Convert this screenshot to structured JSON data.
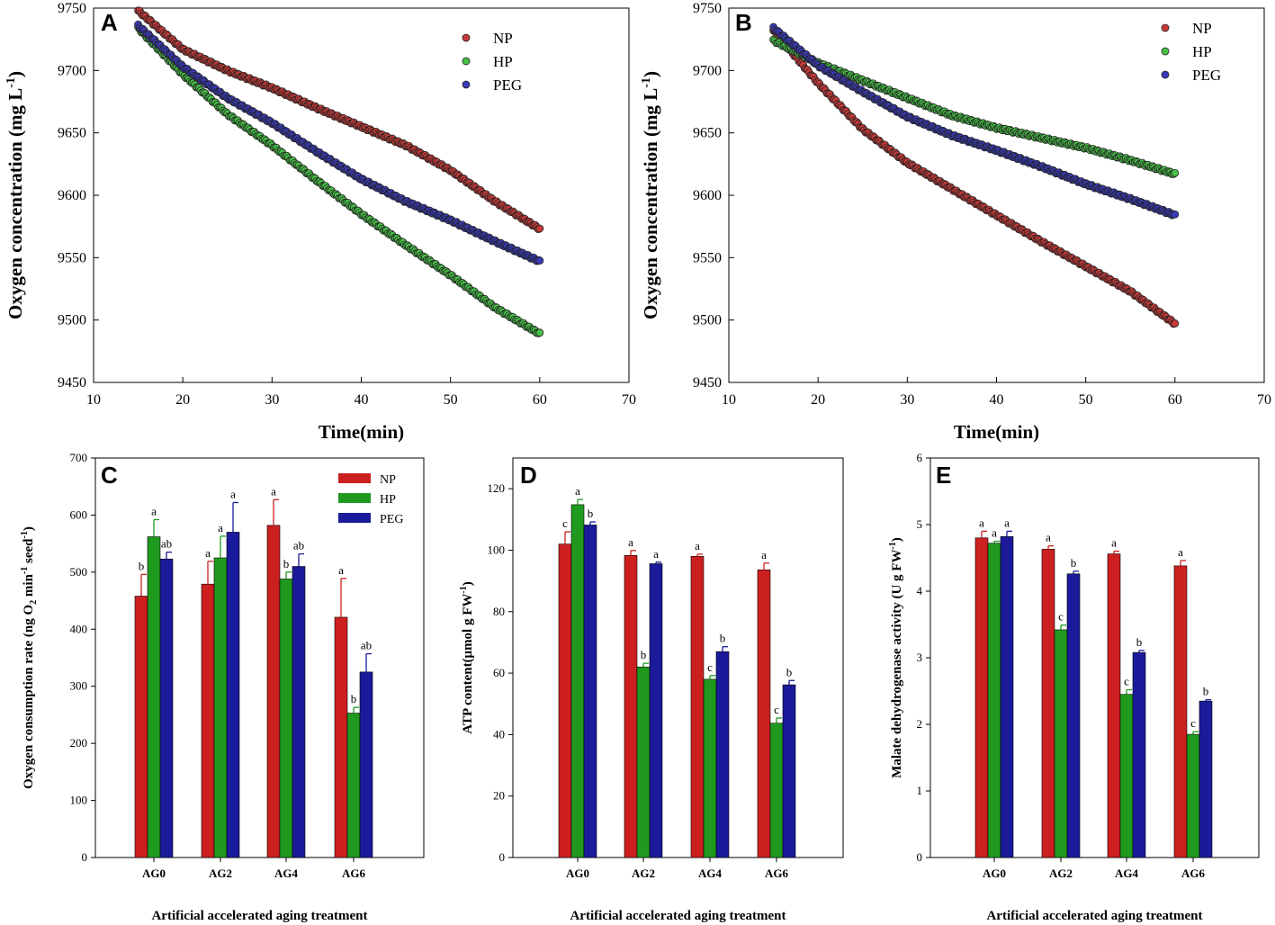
{
  "colors": {
    "NP": "#cc1f1f",
    "HP": "#1f9a1f",
    "PEG": "#1a1a9a",
    "NP_dot": "#c83a3a",
    "HP_dot": "#47c047",
    "PEG_dot": "#3a3ab8"
  },
  "chart_data": [
    {
      "panel": "A",
      "type": "scatter",
      "xlabel": "Time(min)",
      "ylabel": "Oxygen concentration (mg L",
      "ylabel_sup": "-1",
      "ylabel_end": ")",
      "xlim": [
        10,
        70
      ],
      "ylim": [
        9450,
        9750
      ],
      "xticks": [
        10,
        20,
        30,
        40,
        50,
        60,
        70
      ],
      "yticks": [
        9450,
        9500,
        9550,
        9600,
        9650,
        9700,
        9750
      ],
      "x": [
        15,
        20,
        25,
        30,
        35,
        40,
        45,
        50,
        55,
        60
      ],
      "legend": "top-right",
      "series": [
        {
          "name": "NP",
          "values": [
            9748,
            9717,
            9700,
            9686,
            9670,
            9655,
            9640,
            9620,
            9595,
            9573
          ]
        },
        {
          "name": "HP",
          "values": [
            9734,
            9697,
            9665,
            9640,
            9612,
            9585,
            9560,
            9536,
            9510,
            9489
          ]
        },
        {
          "name": "PEG",
          "values": [
            9736,
            9703,
            9678,
            9658,
            9635,
            9613,
            9595,
            9580,
            9563,
            9547
          ]
        }
      ]
    },
    {
      "panel": "B",
      "type": "scatter",
      "xlabel": "Time(min)",
      "ylabel": "Oxygen concentration (mg L",
      "ylabel_sup": "-1",
      "ylabel_end": ")",
      "xlim": [
        10,
        70
      ],
      "ylim": [
        9450,
        9750
      ],
      "xticks": [
        10,
        20,
        30,
        40,
        50,
        60,
        70
      ],
      "yticks": [
        9450,
        9500,
        9550,
        9600,
        9650,
        9700,
        9750
      ],
      "x": [
        15,
        20,
        25,
        30,
        35,
        40,
        45,
        50,
        55,
        60
      ],
      "legend": "top-right",
      "series": [
        {
          "name": "NP",
          "values": [
            9732,
            9690,
            9653,
            9626,
            9605,
            9584,
            9563,
            9543,
            9523,
            9497
          ]
        },
        {
          "name": "HP",
          "values": [
            9724,
            9706,
            9692,
            9678,
            9664,
            9654,
            9646,
            9638,
            9628,
            9617
          ]
        },
        {
          "name": "PEG",
          "values": [
            9734,
            9704,
            9683,
            9663,
            9648,
            9636,
            9623,
            9609,
            9597,
            9584
          ]
        }
      ]
    },
    {
      "panel": "C",
      "type": "bar",
      "xlabel": "Artificial accelerated aging treatment",
      "ylabel_parts": [
        {
          "t": "Oxygen consumption rate (ng O"
        },
        {
          "t": "2",
          "sub": true
        },
        {
          "t": " min"
        },
        {
          "t": "-1",
          "sup": true
        },
        {
          "t": " seed"
        },
        {
          "t": "-1",
          "sup": true
        },
        {
          "t": ")"
        }
      ],
      "ylim": [
        0,
        700
      ],
      "yticks": [
        0,
        100,
        200,
        300,
        400,
        500,
        600,
        700
      ],
      "categories": [
        "AG0",
        "AG2",
        "AG4",
        "AG6"
      ],
      "legend": "top-right",
      "series": [
        {
          "name": "NP",
          "values": [
            458,
            479,
            582,
            421
          ],
          "errors": [
            38,
            40,
            45,
            68
          ],
          "letters": [
            "b",
            "a",
            "a",
            "a"
          ]
        },
        {
          "name": "HP",
          "values": [
            562,
            525,
            488,
            253
          ],
          "errors": [
            30,
            38,
            12,
            10
          ],
          "letters": [
            "a",
            "a",
            "b",
            "b"
          ]
        },
        {
          "name": "PEG",
          "values": [
            523,
            570,
            510,
            325
          ],
          "errors": [
            12,
            52,
            22,
            32
          ],
          "letters": [
            "ab",
            "a",
            "ab",
            "ab"
          ]
        }
      ]
    },
    {
      "panel": "D",
      "type": "bar",
      "xlabel": "Artificial accelerated aging treatment",
      "ylabel_parts": [
        {
          "t": "ATP content(μmol g FW"
        },
        {
          "t": "-1",
          "sup": true
        },
        {
          "t": ")"
        }
      ],
      "ylim": [
        0,
        130
      ],
      "yticks": [
        0,
        20,
        40,
        60,
        80,
        100,
        120
      ],
      "categories": [
        "AG0",
        "AG2",
        "AG4",
        "AG6"
      ],
      "legend": "none",
      "series": [
        {
          "name": "NP",
          "values": [
            102,
            98.3,
            98,
            93.6
          ],
          "errors": [
            4,
            1.6,
            0.7,
            2.2
          ],
          "letters": [
            "c",
            "a",
            "a",
            "a"
          ]
        },
        {
          "name": "HP",
          "values": [
            114.8,
            62,
            58,
            43.7
          ],
          "errors": [
            1.7,
            1.2,
            1.2,
            1.7
          ],
          "letters": [
            "a",
            "b",
            "c",
            "c"
          ]
        },
        {
          "name": "PEG",
          "values": [
            108.2,
            95.6,
            67,
            56.2
          ],
          "errors": [
            1,
            0.5,
            1.6,
            1.4
          ],
          "letters": [
            "b",
            "a",
            "b",
            "b"
          ]
        }
      ]
    },
    {
      "panel": "E",
      "type": "bar",
      "xlabel": "Artificial accelerated aging treatment",
      "ylabel_parts": [
        {
          "t": "Malate dehydrogenase activity (U g FW"
        },
        {
          "t": "-1",
          "sup": true
        },
        {
          "t": ")"
        }
      ],
      "ylim": [
        0,
        6
      ],
      "yticks": [
        0,
        1,
        2,
        3,
        4,
        5,
        6
      ],
      "categories": [
        "AG0",
        "AG2",
        "AG4",
        "AG6"
      ],
      "legend": "none",
      "series": [
        {
          "name": "NP",
          "values": [
            4.8,
            4.63,
            4.56,
            4.38
          ],
          "errors": [
            0.1,
            0.05,
            0.04,
            0.08
          ],
          "letters": [
            "a",
            "a",
            "a",
            "a"
          ]
        },
        {
          "name": "HP",
          "values": [
            4.72,
            3.42,
            2.45,
            1.85
          ],
          "errors": [
            0.03,
            0.07,
            0.07,
            0.04
          ],
          "letters": [
            "a",
            "c",
            "c",
            "c"
          ]
        },
        {
          "name": "PEG",
          "values": [
            4.82,
            4.26,
            3.08,
            2.35
          ],
          "errors": [
            0.08,
            0.04,
            0.03,
            0.02
          ],
          "letters": [
            "a",
            "b",
            "b",
            "b"
          ]
        }
      ]
    }
  ]
}
